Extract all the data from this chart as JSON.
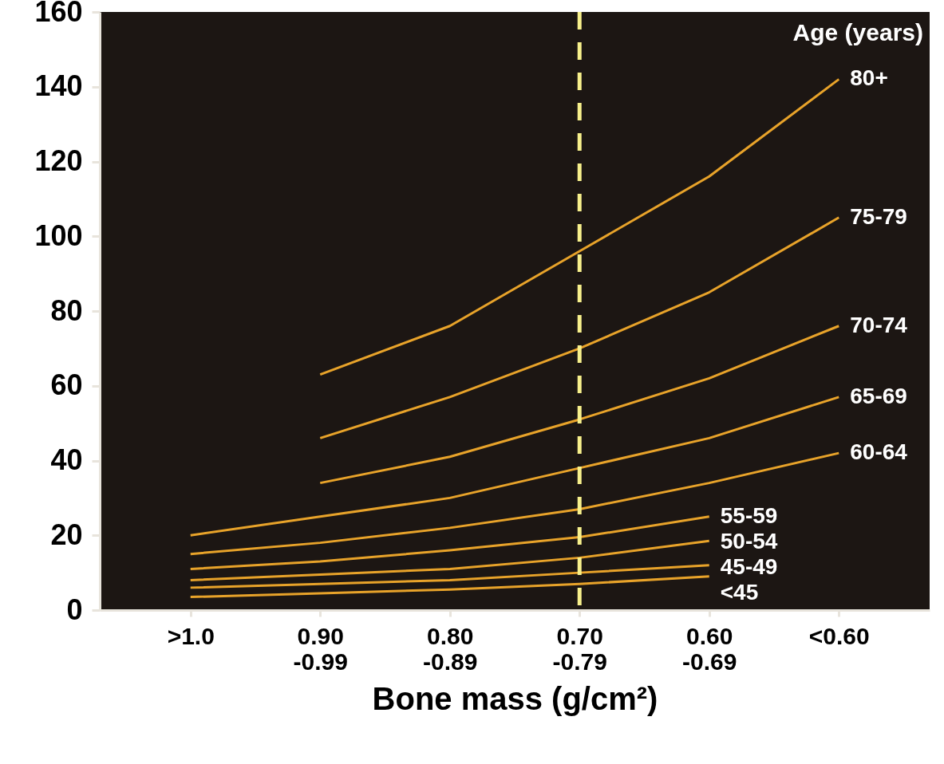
{
  "chart_data": {
    "type": "line",
    "xlabel": "Bone mass (g/cm²)",
    "legend_title": "Age (years)",
    "categories": [
      ">1.0",
      "0.90 -0.99",
      "0.80 -0.89",
      "0.70 -0.79",
      "0.60 -0.69",
      "<0.60"
    ],
    "ylim": [
      0,
      160
    ],
    "yticks": [
      0,
      20,
      40,
      60,
      80,
      100,
      120,
      140,
      160
    ],
    "marker": "none",
    "line_style": "solid",
    "series": [
      {
        "name": "80+",
        "color": "#e8a32a",
        "values": [
          null,
          63,
          76,
          96,
          116,
          142
        ]
      },
      {
        "name": "75-79",
        "color": "#e8a32a",
        "values": [
          null,
          46,
          57,
          70,
          85,
          105
        ]
      },
      {
        "name": "70-74",
        "color": "#e8a32a",
        "values": [
          null,
          34,
          41,
          51,
          62,
          76
        ]
      },
      {
        "name": "65-69",
        "color": "#e8a32a",
        "values": [
          20,
          25,
          30,
          38,
          46,
          57
        ]
      },
      {
        "name": "60-64",
        "color": "#e8a32a",
        "values": [
          15,
          18,
          22,
          27,
          34,
          42
        ]
      },
      {
        "name": "55-59",
        "color": "#e8a32a",
        "values": [
          11,
          13,
          16,
          19.5,
          25,
          null
        ]
      },
      {
        "name": "50-54",
        "color": "#e8a32a",
        "values": [
          8,
          9.5,
          11,
          14,
          18.5,
          null
        ]
      },
      {
        "name": "45-49",
        "color": "#e8a32a",
        "values": [
          6,
          7,
          8,
          10,
          12,
          null
        ]
      },
      {
        "name": "<45",
        "color": "#e8a32a",
        "values": [
          3.5,
          4.5,
          5.5,
          7,
          9,
          null
        ]
      }
    ],
    "ref_lines": [
      {
        "axis": "x",
        "value": "0.70 -0.79",
        "color": "#f7f08c",
        "line_style": "dashed"
      }
    ]
  }
}
